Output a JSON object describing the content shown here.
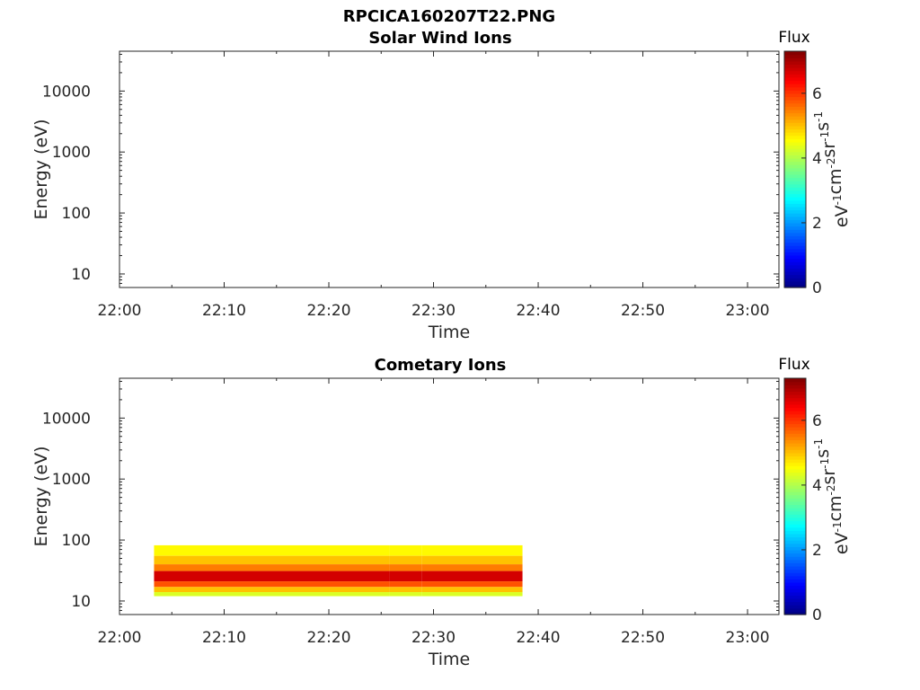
{
  "figure": {
    "main_title": "RPCICA160207T22.PNG"
  },
  "chart_data": [
    {
      "type": "heatmap",
      "title": "Solar Wind Ions",
      "xlabel": "Time",
      "ylabel": "Energy (eV)",
      "x_ticks": [
        "22:00",
        "22:10",
        "22:20",
        "22:30",
        "22:40",
        "22:50",
        "23:00"
      ],
      "x_range_minutes": [
        0,
        63
      ],
      "y_scale": "log",
      "y_ticks": [
        10,
        100,
        1000,
        10000
      ],
      "y_tick_labels": [
        "10",
        "100",
        "1000",
        "10000"
      ],
      "y_range": [
        6,
        45000
      ],
      "colorbar": {
        "label": "Flux",
        "units_base": [
          "eV",
          "cm",
          "sr",
          "s"
        ],
        "units_exp": [
          "-1",
          "-2",
          "-1",
          "-1"
        ],
        "range": [
          0,
          7.3
        ],
        "ticks": [
          0,
          2,
          4,
          6
        ],
        "tick_labels": [
          "0",
          "2",
          "4",
          "6"
        ],
        "colormap": "jet"
      },
      "bands": []
    },
    {
      "type": "heatmap",
      "title": "Cometary Ions",
      "xlabel": "Time",
      "ylabel": "Energy (eV)",
      "x_ticks": [
        "22:00",
        "22:10",
        "22:20",
        "22:30",
        "22:40",
        "22:50",
        "23:00"
      ],
      "x_range_minutes": [
        0,
        63
      ],
      "y_scale": "log",
      "y_ticks": [
        10,
        100,
        1000,
        10000
      ],
      "y_tick_labels": [
        "10",
        "100",
        "1000",
        "10000"
      ],
      "y_range": [
        6,
        45000
      ],
      "colorbar": {
        "label": "Flux",
        "units_base": [
          "eV",
          "cm",
          "sr",
          "s"
        ],
        "units_exp": [
          "-1",
          "-2",
          "-1",
          "-1"
        ],
        "range": [
          0,
          7.3
        ],
        "ticks": [
          0,
          2,
          4,
          6
        ],
        "tick_labels": [
          "0",
          "2",
          "4",
          "6"
        ],
        "colormap": "jet"
      },
      "bands": [
        {
          "time_start_min": 3.3,
          "time_end_min": 38.5,
          "gap_start_min": 25.8,
          "gap_end_min": 28.9,
          "energy_bands_eV": [
            {
              "low": 55,
              "high": 82,
              "flux": 4.6
            },
            {
              "low": 40,
              "high": 55,
              "flux": 5.0
            },
            {
              "low": 31,
              "high": 40,
              "flux": 5.5
            },
            {
              "low": 21,
              "high": 31,
              "flux": 6.7
            },
            {
              "low": 17,
              "high": 21,
              "flux": 5.8
            },
            {
              "low": 14,
              "high": 17,
              "flux": 5.0
            },
            {
              "low": 12,
              "high": 14,
              "flux": 4.3
            }
          ]
        }
      ]
    }
  ]
}
